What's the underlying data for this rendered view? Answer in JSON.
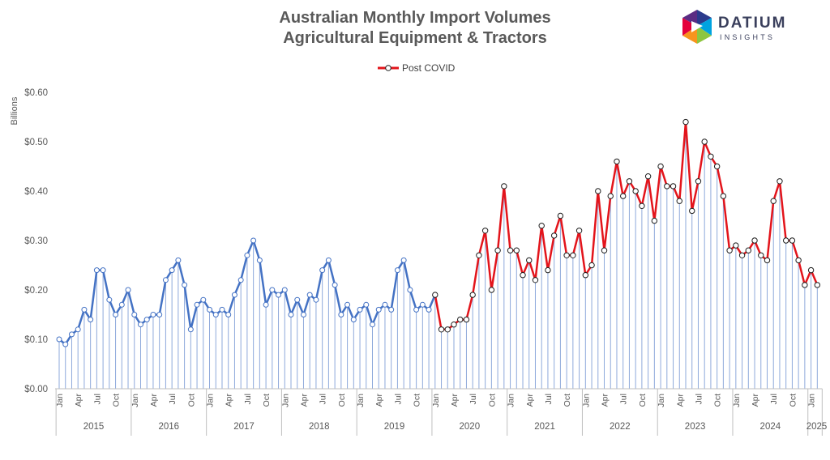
{
  "title_line1": "Australian Monthly Import Volumes",
  "title_line2": "Agricultural Equipment & Tractors",
  "logo": {
    "word": "DATIUM",
    "sub": "INSIGHTS"
  },
  "colors": {
    "pre": "#4472c4",
    "post": "#e3141b",
    "drop": "#8ea9db",
    "axis": "#bfbfbf",
    "logo_colors": [
      "#2b3a8c",
      "#00a3e0",
      "#f7941d",
      "#8dc63f",
      "#e4003b"
    ]
  },
  "chart_data": {
    "type": "line",
    "title": "Australian Monthly Import Volumes Agricultural Equipment & Tractors",
    "ylabel": "Billions",
    "yticks": [
      "$0.00",
      "$0.10",
      "$0.20",
      "$0.30",
      "$0.40",
      "$0.50",
      "$0.60"
    ],
    "ylim": [
      0,
      0.6
    ],
    "grid": false,
    "legend_position": "top-center",
    "month_labels": [
      "Jan",
      "Apr",
      "Jul",
      "Oct"
    ],
    "years": [
      "2015",
      "2016",
      "2017",
      "2018",
      "2019",
      "2020",
      "2021",
      "2022",
      "2023",
      "2024",
      "2025"
    ],
    "last_month_label": "Jan",
    "series": [
      {
        "name": "",
        "style": "blue line with hollow markers and drop lines",
        "start": "2015-01",
        "values": [
          0.1,
          0.09,
          0.11,
          0.12,
          0.16,
          0.14,
          0.24,
          0.24,
          0.18,
          0.15,
          0.17,
          0.2,
          0.15,
          0.13,
          0.14,
          0.15,
          0.15,
          0.22,
          0.24,
          0.26,
          0.21,
          0.12,
          0.17,
          0.18,
          0.16,
          0.15,
          0.16,
          0.15,
          0.19,
          0.22,
          0.27,
          0.3,
          0.26,
          0.17,
          0.2,
          0.19,
          0.2,
          0.15,
          0.18,
          0.15,
          0.19,
          0.18,
          0.24,
          0.26,
          0.21,
          0.15,
          0.17,
          0.14,
          0.16,
          0.17,
          0.13,
          0.16,
          0.17,
          0.16,
          0.24,
          0.26,
          0.2,
          0.16,
          0.17,
          0.16,
          0.19
        ]
      },
      {
        "name": "Post COVID",
        "style": "red line with hollow markers and drop lines",
        "start": "2020-01",
        "values": [
          0.19,
          0.12,
          0.12,
          0.13,
          0.14,
          0.14,
          0.19,
          0.27,
          0.32,
          0.2,
          0.28,
          0.41,
          0.28,
          0.28,
          0.23,
          0.26,
          0.22,
          0.33,
          0.24,
          0.31,
          0.35,
          0.27,
          0.27,
          0.32,
          0.23,
          0.25,
          0.4,
          0.28,
          0.39,
          0.46,
          0.39,
          0.42,
          0.4,
          0.37,
          0.43,
          0.34,
          0.45,
          0.41,
          0.41,
          0.38,
          0.54,
          0.36,
          0.42,
          0.5,
          0.47,
          0.45,
          0.39,
          0.28,
          0.29,
          0.27,
          0.28,
          0.3,
          0.27,
          0.26,
          0.38,
          0.42,
          0.3,
          0.3,
          0.26,
          0.21,
          0.24,
          0.21
        ]
      }
    ]
  }
}
